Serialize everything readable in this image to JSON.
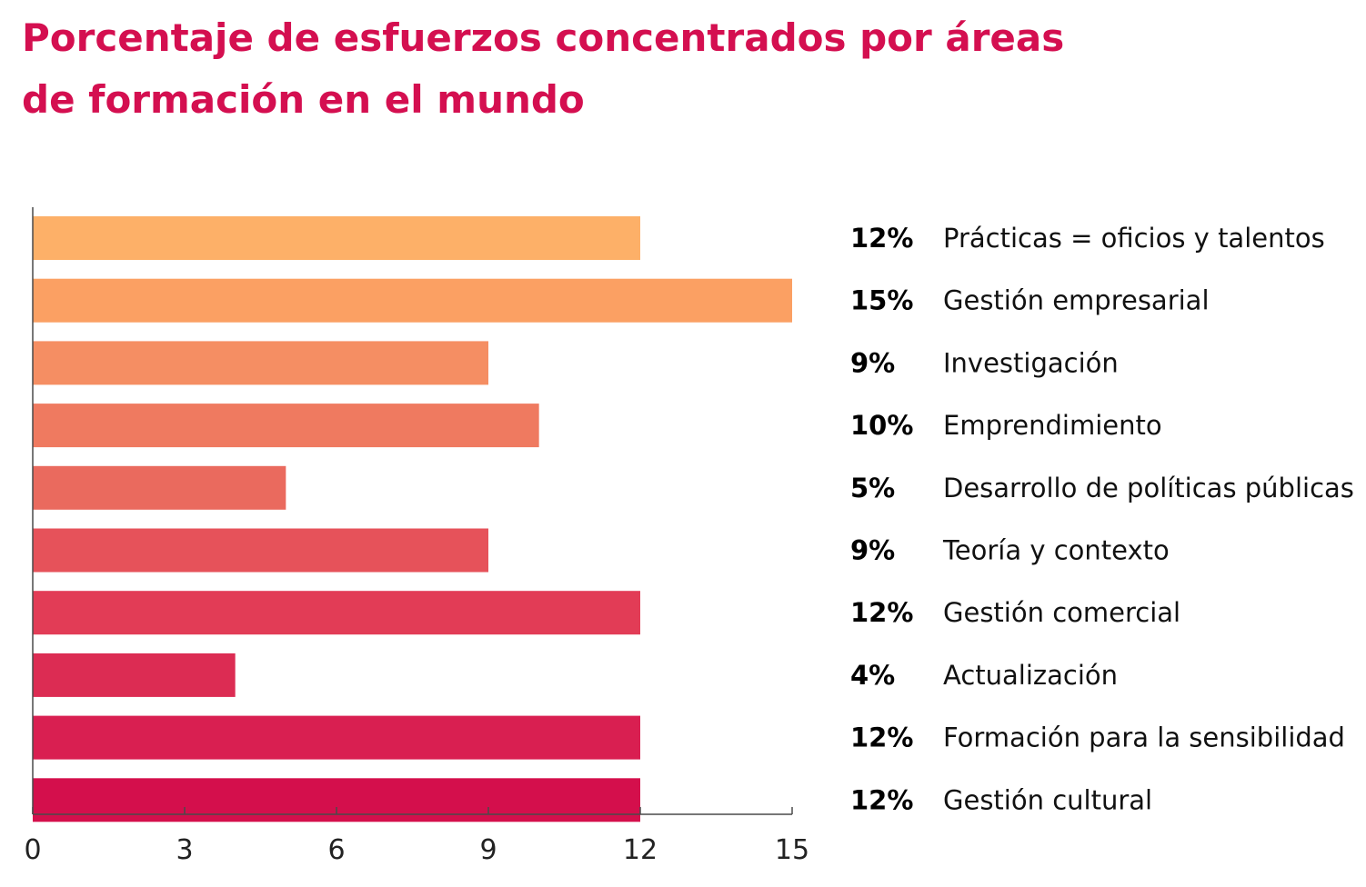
{
  "chart_data": {
    "type": "bar",
    "orientation": "horizontal",
    "title_lines": [
      "Porcentaje de esfuerzos concentrados por áreas",
      "de formación en el mundo"
    ],
    "categories": [
      "Prácticas = oficios y talentos",
      "Gestión empresarial",
      "Investigación",
      "Emprendimiento",
      "Desarrollo de políticas públicas",
      "Teoría y contexto",
      "Gestión comercial",
      "Actualización",
      "Formación para la sensibilidad",
      "Gestión cultural"
    ],
    "values": [
      12,
      15,
      9,
      10,
      5,
      9,
      12,
      4,
      12,
      12
    ],
    "value_labels": [
      "12%",
      "15%",
      "9%",
      "10%",
      "5%",
      "9%",
      "12%",
      "4%",
      "12%",
      "12%"
    ],
    "bar_colors": [
      "#fdb068",
      "#fba063",
      "#f58e63",
      "#ef7a60",
      "#ea6a5e",
      "#e6525a",
      "#e23c56",
      "#dc2c53",
      "#d91f51",
      "#d40f4c"
    ],
    "xlim": [
      0,
      15
    ],
    "xticks": [
      0,
      3,
      6,
      9,
      12,
      15
    ],
    "xlabel": "",
    "ylabel": "",
    "grid": false,
    "legend": "right"
  }
}
